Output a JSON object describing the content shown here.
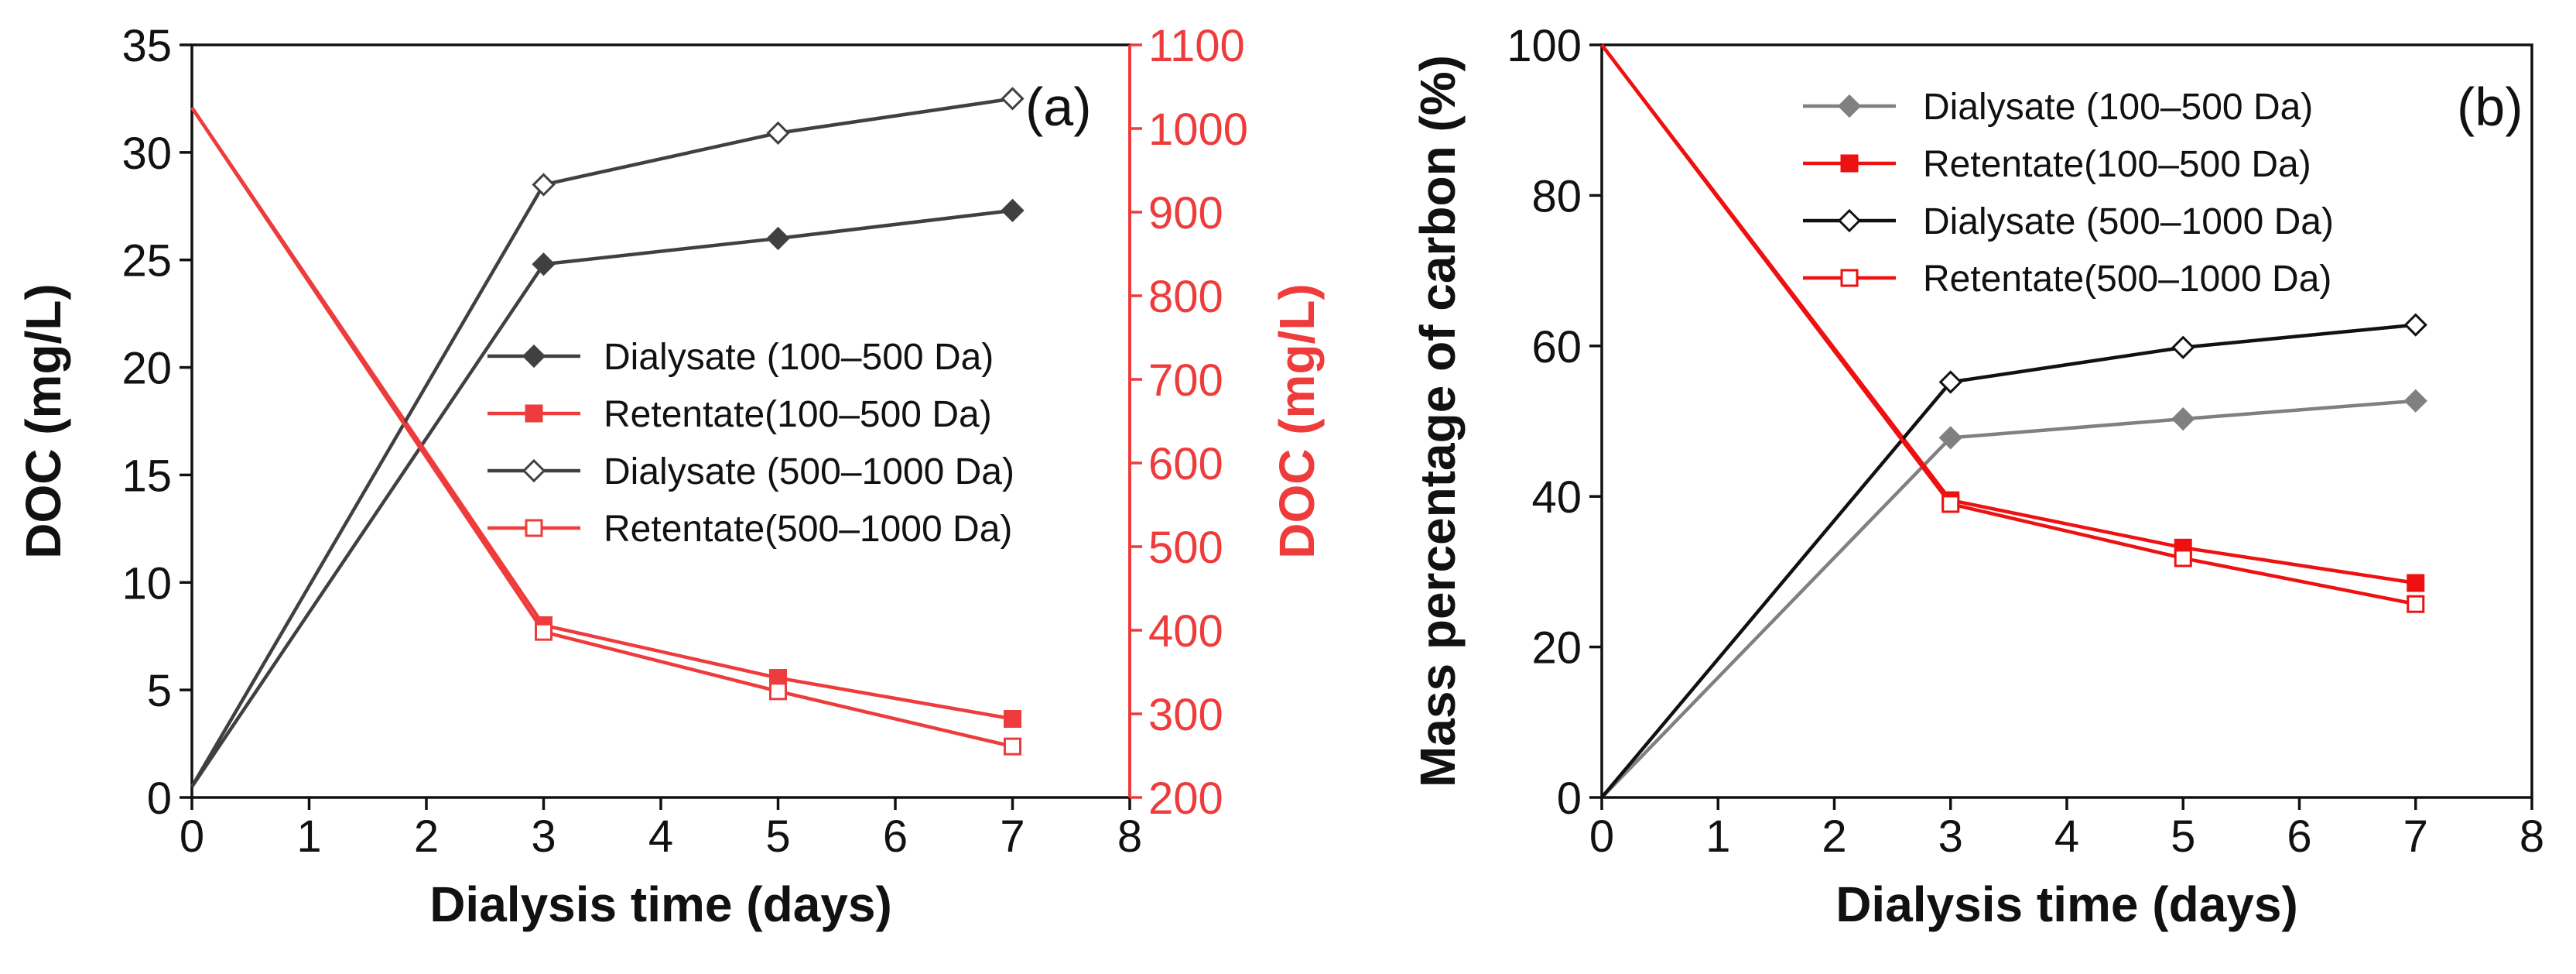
{
  "chart_data": [
    {
      "type": "line",
      "panel_label": "(a)",
      "xlabel": "Dialysis time (days)",
      "ylabel": "DOC (mg/L)",
      "y2label": "DOC (mg/L)",
      "xlim": [
        0,
        8
      ],
      "ylim": [
        0,
        35
      ],
      "y2lim": [
        200,
        1100
      ],
      "xticks": [
        "0",
        "1",
        "2",
        "3",
        "4",
        "5",
        "6",
        "7",
        "8"
      ],
      "yticks": [
        "0",
        "5",
        "10",
        "15",
        "20",
        "25",
        "30",
        "35"
      ],
      "y2ticks": [
        "200",
        "300",
        "400",
        "500",
        "600",
        "700",
        "800",
        "900",
        "1000",
        "1100"
      ],
      "legend_position": "center-right",
      "colors": {
        "dark": "#404040",
        "red": "#ee3b3b",
        "axis2": "#ee3b3b"
      },
      "series": [
        {
          "name": "Dialysate (100–500 Da)",
          "axis": "left",
          "color": "#404040",
          "marker": "filled-diamond",
          "x": [
            0,
            3,
            5,
            7
          ],
          "values": [
            0.5,
            24.8,
            26.0,
            27.3
          ]
        },
        {
          "name": "Retentate(100–500 Da)",
          "axis": "right",
          "color": "#ee3b3b",
          "marker": "filled-square",
          "x": [
            0,
            3,
            5,
            7
          ],
          "values": [
            1025,
            406,
            343,
            294
          ]
        },
        {
          "name": "Dialysate (500–1000 Da)",
          "axis": "left",
          "color": "#404040",
          "marker": "open-diamond",
          "x": [
            0,
            3,
            5,
            7
          ],
          "values": [
            0.5,
            28.5,
            30.9,
            32.5
          ]
        },
        {
          "name": "Retentate(500–1000 Da)",
          "axis": "right",
          "color": "#ee3b3b",
          "marker": "open-square",
          "x": [
            0,
            3,
            5,
            7
          ],
          "values": [
            1025,
            398,
            327,
            261
          ]
        }
      ]
    },
    {
      "type": "line",
      "panel_label": "(b)",
      "xlabel": "Dialysis time (days)",
      "ylabel": "Mass percentage of carbon (%)",
      "xlim": [
        0,
        8
      ],
      "ylim": [
        0,
        100
      ],
      "xticks": [
        "0",
        "1",
        "2",
        "3",
        "4",
        "5",
        "6",
        "7",
        "8"
      ],
      "yticks": [
        "0",
        "20",
        "40",
        "60",
        "80",
        "100"
      ],
      "legend_position": "top-right",
      "colors": {
        "gray": "#808080",
        "red": "#ee1111",
        "black": "#111111"
      },
      "series": [
        {
          "name": "Dialysate (100–500 Da)",
          "color": "#808080",
          "marker": "filled-diamond",
          "x": [
            0,
            3,
            5,
            7
          ],
          "values": [
            0,
            47.8,
            50.3,
            52.7
          ]
        },
        {
          "name": "Retentate(100–500 Da)",
          "color": "#ee1111",
          "marker": "filled-square",
          "x": [
            0,
            3,
            5,
            7
          ],
          "values": [
            100,
            39.5,
            33.2,
            28.5
          ]
        },
        {
          "name": "Dialysate (500–1000 Da)",
          "color": "#111111",
          "marker": "open-diamond",
          "x": [
            0,
            3,
            5,
            7
          ],
          "values": [
            0,
            55.2,
            59.8,
            62.8
          ]
        },
        {
          "name": "Retentate(500–1000 Da)",
          "color": "#ee1111",
          "marker": "open-square",
          "x": [
            0,
            3,
            5,
            7
          ],
          "values": [
            100,
            39.0,
            31.8,
            25.7
          ]
        }
      ]
    }
  ]
}
